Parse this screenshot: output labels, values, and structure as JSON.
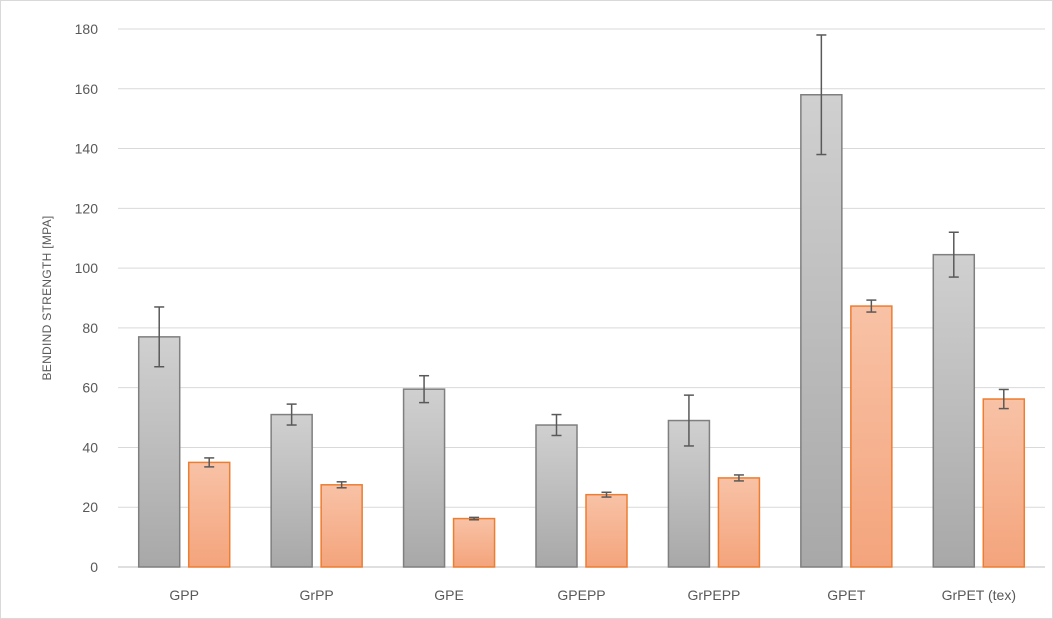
{
  "chart_data": {
    "type": "bar",
    "title": "",
    "xlabel": "",
    "ylabel": "BENDIND STRENGTH  [MPA]",
    "ylim": [
      0,
      180
    ],
    "yticks": [
      0,
      20,
      40,
      60,
      80,
      100,
      120,
      140,
      160,
      180
    ],
    "grid": true,
    "legend": "none",
    "categories": [
      "GPP",
      "GrPP",
      "GPE",
      "GPEPP",
      "GrPEPP",
      "GPET",
      "GrPET (tex)"
    ],
    "series": [
      {
        "color": "#c8c8c8",
        "edge_color": "#7f7f7f",
        "values": [
          77,
          51,
          59.5,
          47.5,
          49,
          158,
          104.5
        ],
        "errors": [
          10,
          3.5,
          4.5,
          3.5,
          8.5,
          20,
          7.5
        ]
      },
      {
        "color": "#f6b08e",
        "edge_color": "#ed7d31",
        "values": [
          35,
          27.5,
          16.2,
          24.2,
          29.8,
          87.3,
          56.2
        ],
        "errors": [
          1.5,
          1,
          0.4,
          0.8,
          1,
          2,
          3.2
        ]
      }
    ]
  }
}
